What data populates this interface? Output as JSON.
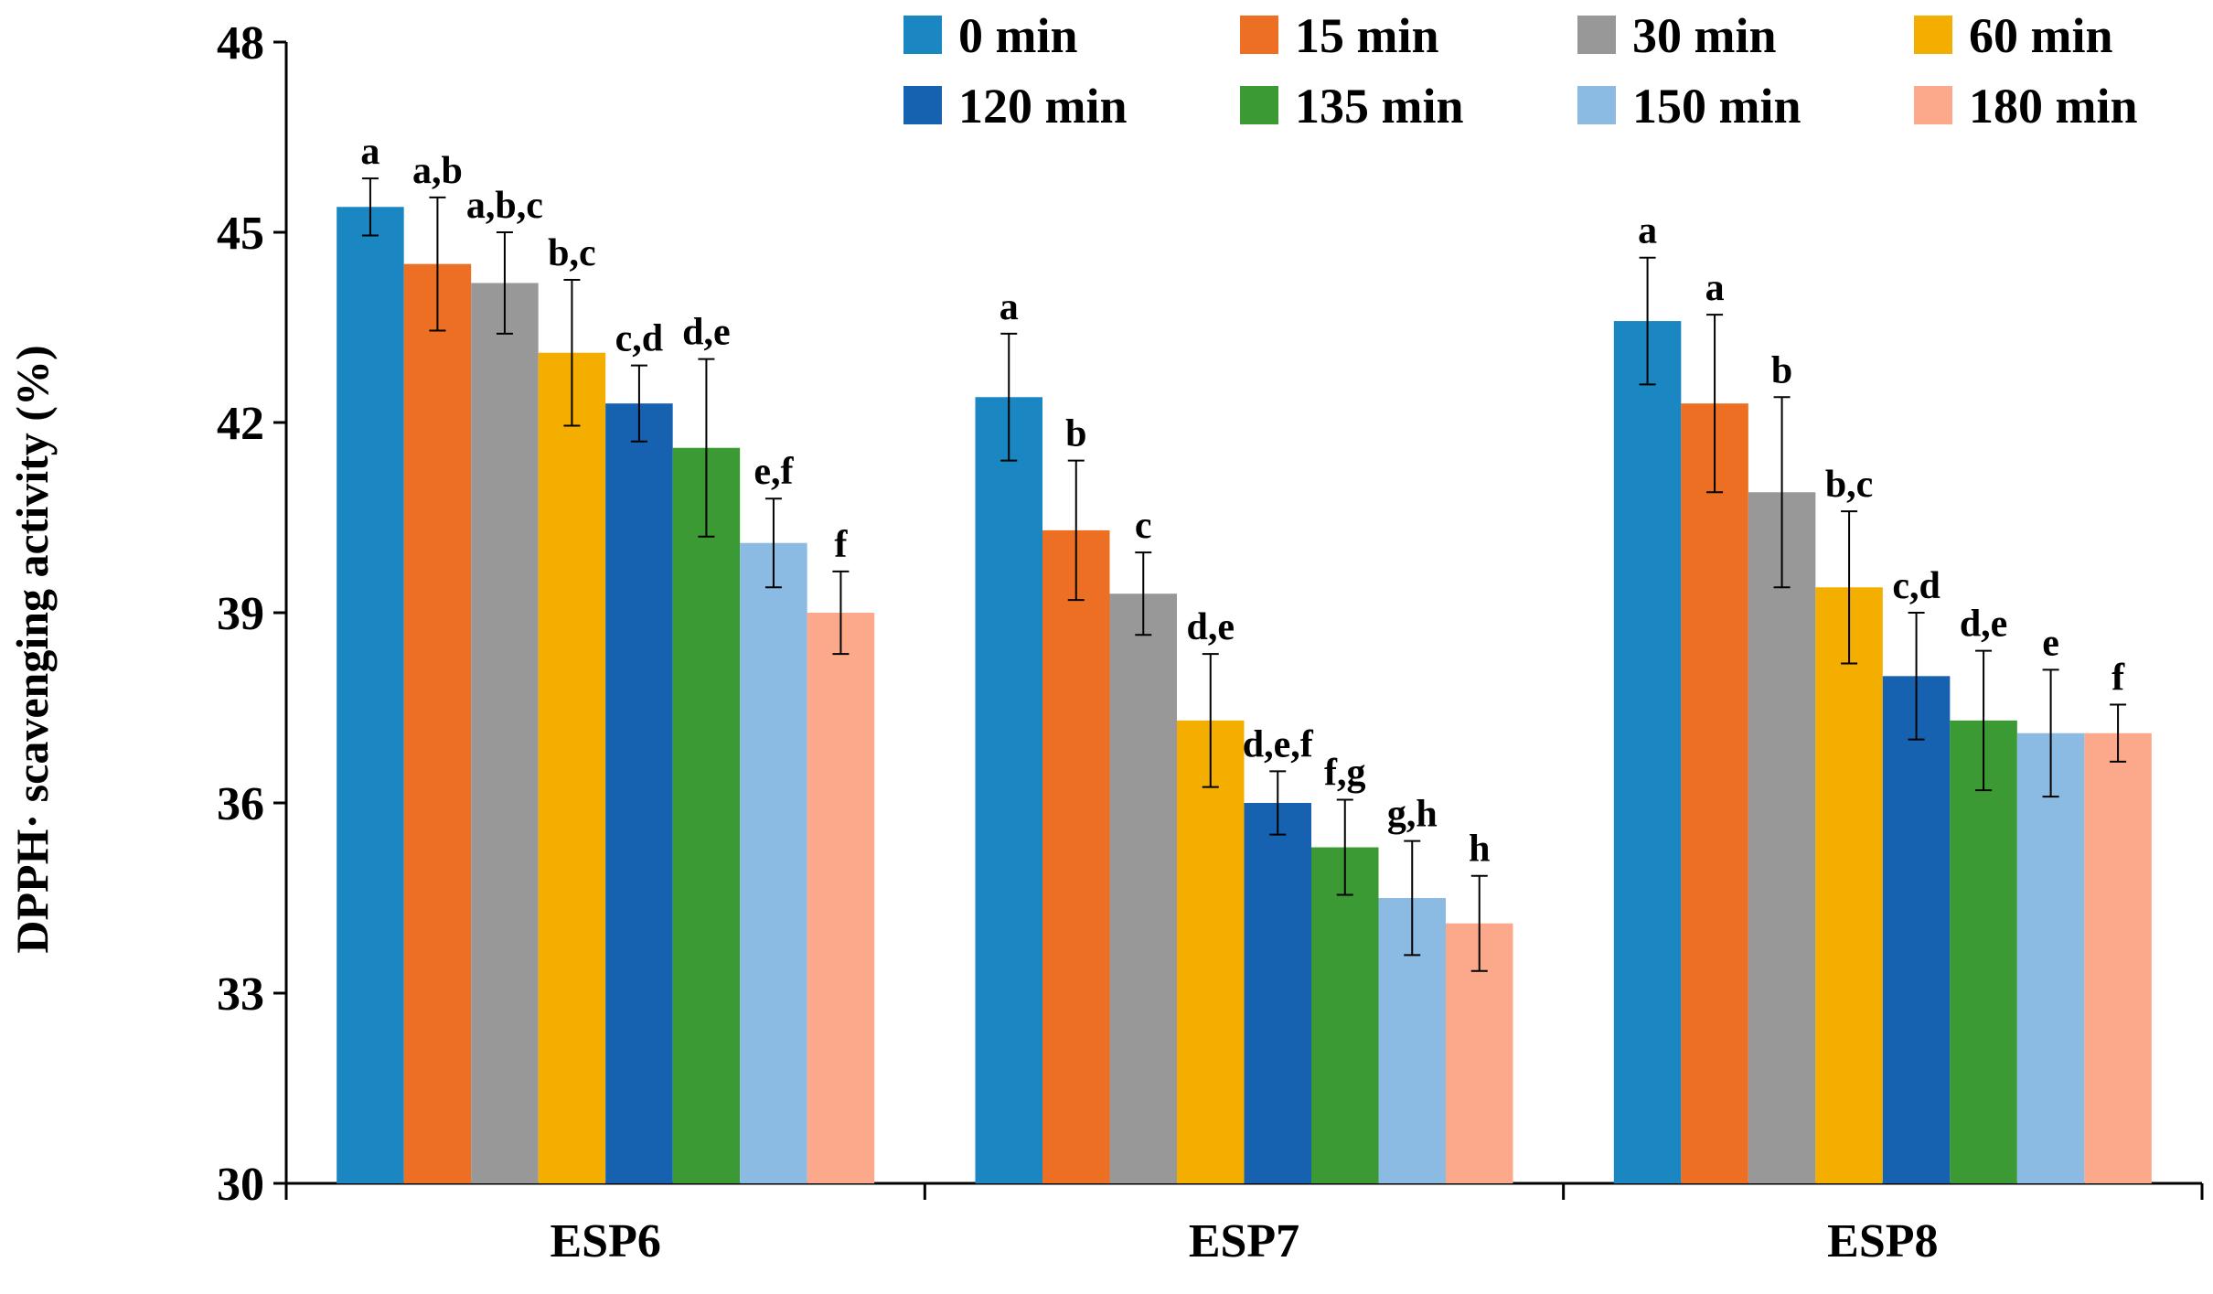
{
  "chart_data": {
    "type": "bar",
    "title": "",
    "xlabel": "",
    "ylabel": "DPPH· scavenging activity (%)",
    "ylim": [
      30,
      48
    ],
    "yticks": [
      30,
      33,
      36,
      39,
      42,
      45,
      48
    ],
    "categories": [
      "ESP6",
      "ESP7",
      "ESP8"
    ],
    "legend_position": "top-right",
    "series": [
      {
        "name": "0 min",
        "color": "#1B87C2",
        "values": [
          45.4,
          42.4,
          43.6
        ],
        "errors": [
          0.45,
          1.0,
          1.0
        ],
        "labels": [
          "a",
          "a",
          "a"
        ]
      },
      {
        "name": "15 min",
        "color": "#EC6F24",
        "values": [
          44.5,
          40.3,
          42.3
        ],
        "errors": [
          1.05,
          1.1,
          1.4
        ],
        "labels": [
          "a,b",
          "b",
          "a"
        ]
      },
      {
        "name": "30 min",
        "color": "#989898",
        "values": [
          44.2,
          39.3,
          40.9
        ],
        "errors": [
          0.8,
          0.65,
          1.5
        ],
        "labels": [
          "a,b,c",
          "c",
          "b"
        ]
      },
      {
        "name": "60 min",
        "color": "#F4AE00",
        "values": [
          43.1,
          37.3,
          39.4
        ],
        "errors": [
          1.15,
          1.05,
          1.2
        ],
        "labels": [
          "b,c",
          "d,e",
          "b,c"
        ]
      },
      {
        "name": "120 min",
        "color": "#1661B0",
        "values": [
          42.3,
          36.0,
          38.0
        ],
        "errors": [
          0.6,
          0.5,
          1.0
        ],
        "labels": [
          "c,d",
          "d,e,f",
          "c,d"
        ]
      },
      {
        "name": "135 min",
        "color": "#3B9A33",
        "values": [
          41.6,
          35.3,
          37.3
        ],
        "errors": [
          1.4,
          0.75,
          1.1
        ],
        "labels": [
          "d,e",
          "f,g",
          "d,e"
        ]
      },
      {
        "name": "150 min",
        "color": "#8BBAE2",
        "values": [
          40.1,
          34.5,
          37.1
        ],
        "errors": [
          0.7,
          0.9,
          1.0
        ],
        "labels": [
          "e,f",
          "g,h",
          "e"
        ]
      },
      {
        "name": "180 min",
        "color": "#FBA98A",
        "values": [
          39.0,
          34.1,
          37.1
        ],
        "errors": [
          0.65,
          0.75,
          0.45
        ],
        "labels": [
          "f",
          "h",
          "f"
        ]
      }
    ]
  }
}
